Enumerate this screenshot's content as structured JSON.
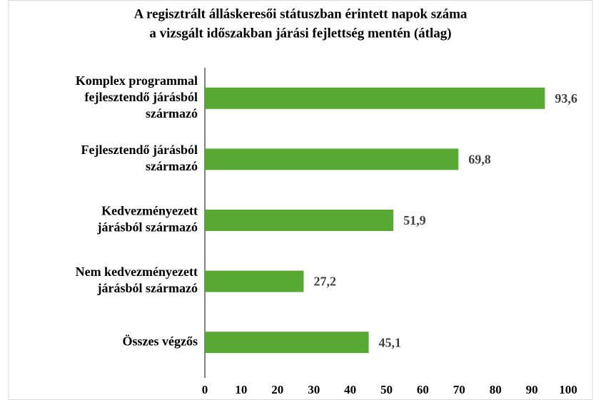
{
  "chart_data": {
    "type": "bar",
    "orientation": "horizontal",
    "title": [
      "A regisztrált álláskeresői státuszban érintett napok száma",
      "a vizsgált időszakban járási fejlettség mentén (átlag)"
    ],
    "categories": [
      [
        "Komplex programmal",
        "fejlesztendő járásból",
        "származó"
      ],
      [
        "Fejlesztendő járásból",
        "származó"
      ],
      [
        "Kedvezményezett",
        "járásból származó"
      ],
      [
        "Nem kedvezményezett",
        "járásból származó"
      ],
      [
        "Összes végzős"
      ]
    ],
    "values": [
      93.6,
      69.8,
      51.9,
      27.2,
      45.1
    ],
    "value_labels": [
      "93,6",
      "69,8",
      "51,9",
      "27,2",
      "45,1"
    ],
    "color": "#58a834",
    "xlim": [
      0,
      100
    ],
    "xticks": [
      0,
      10,
      20,
      30,
      40,
      50,
      60,
      70,
      80,
      90,
      100
    ],
    "grid": false
  }
}
